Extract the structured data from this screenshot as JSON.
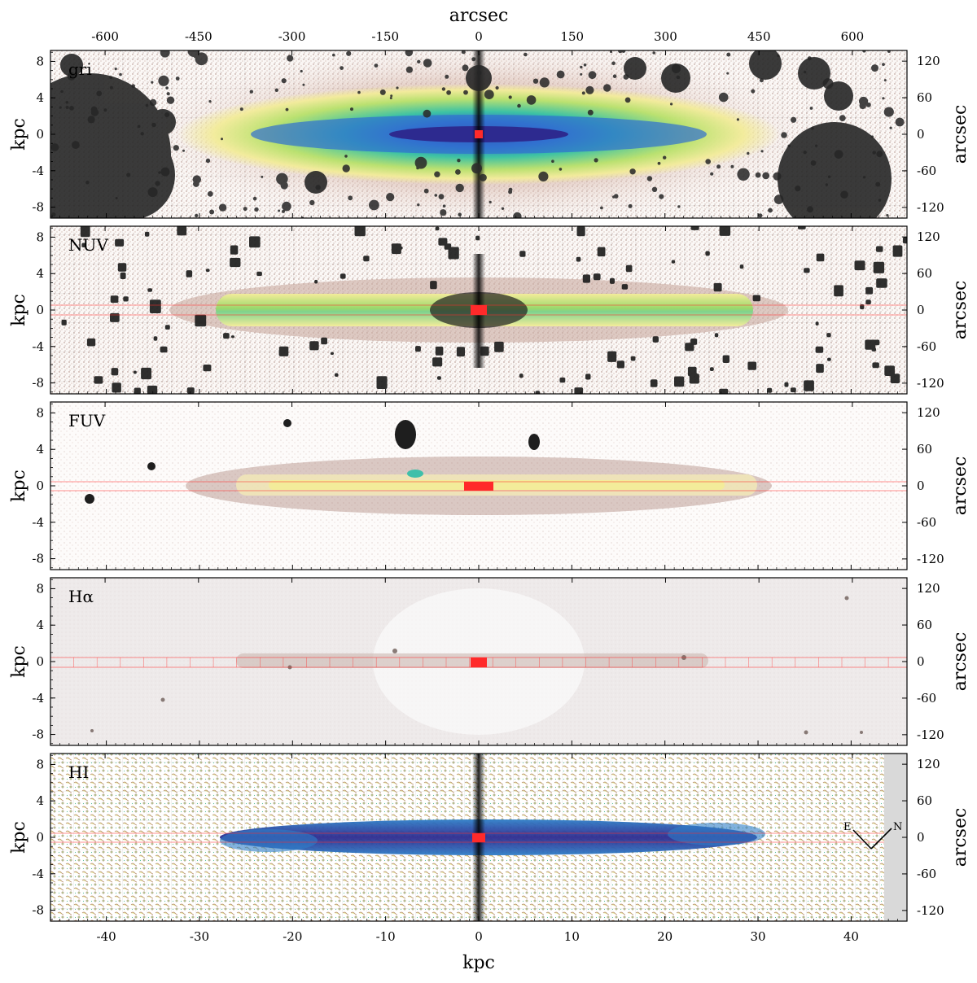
{
  "figure": {
    "top_axis_title": "arcsec",
    "bottom_axis_title": "kpc",
    "left_axis_title": "kpc",
    "right_axis_title": "arcsec",
    "top_ticks": [
      "-600",
      "-450",
      "-300",
      "-150",
      "0",
      "150",
      "300",
      "450",
      "600"
    ],
    "top_tick_values": [
      -600,
      -450,
      -300,
      -150,
      0,
      150,
      300,
      450,
      600
    ],
    "bottom_ticks": [
      "-40",
      "-30",
      "-20",
      "-10",
      "0",
      "10",
      "20",
      "30",
      "40"
    ],
    "bottom_tick_values": [
      -40,
      -30,
      -20,
      -10,
      0,
      10,
      20,
      30,
      40
    ],
    "left_ticks": [
      "8",
      "4",
      "0",
      "-4",
      "-8"
    ],
    "left_tick_values": [
      8,
      4,
      0,
      -4,
      -8
    ],
    "right_ticks": [
      "120",
      "60",
      "0",
      "-60",
      "-120"
    ],
    "right_tick_values": [
      120,
      60,
      0,
      -60,
      -120
    ],
    "x_range_kpc": [
      -46,
      46
    ],
    "y_range_kpc": [
      -9.2,
      9.2
    ],
    "arcsec_per_kpc": 14.95,
    "compass": {
      "east": "E",
      "north": "N"
    }
  },
  "panels": [
    {
      "label": "gri",
      "style": "optical"
    },
    {
      "label": "NUV",
      "style": "nuv"
    },
    {
      "label": "FUV",
      "style": "fuv"
    },
    {
      "label": "Hα",
      "style": "halpha"
    },
    {
      "label": "HI",
      "style": "hi"
    }
  ],
  "colors": {
    "stripe_red": "#ff2a2a",
    "mask_dark": "#2b2b2b",
    "halo_brown": "#b59a92",
    "dense_blue": "#3a2f9a",
    "cyan": "#3fbfaa",
    "green": "#9ad86a",
    "yellow": "#f0e890"
  }
}
